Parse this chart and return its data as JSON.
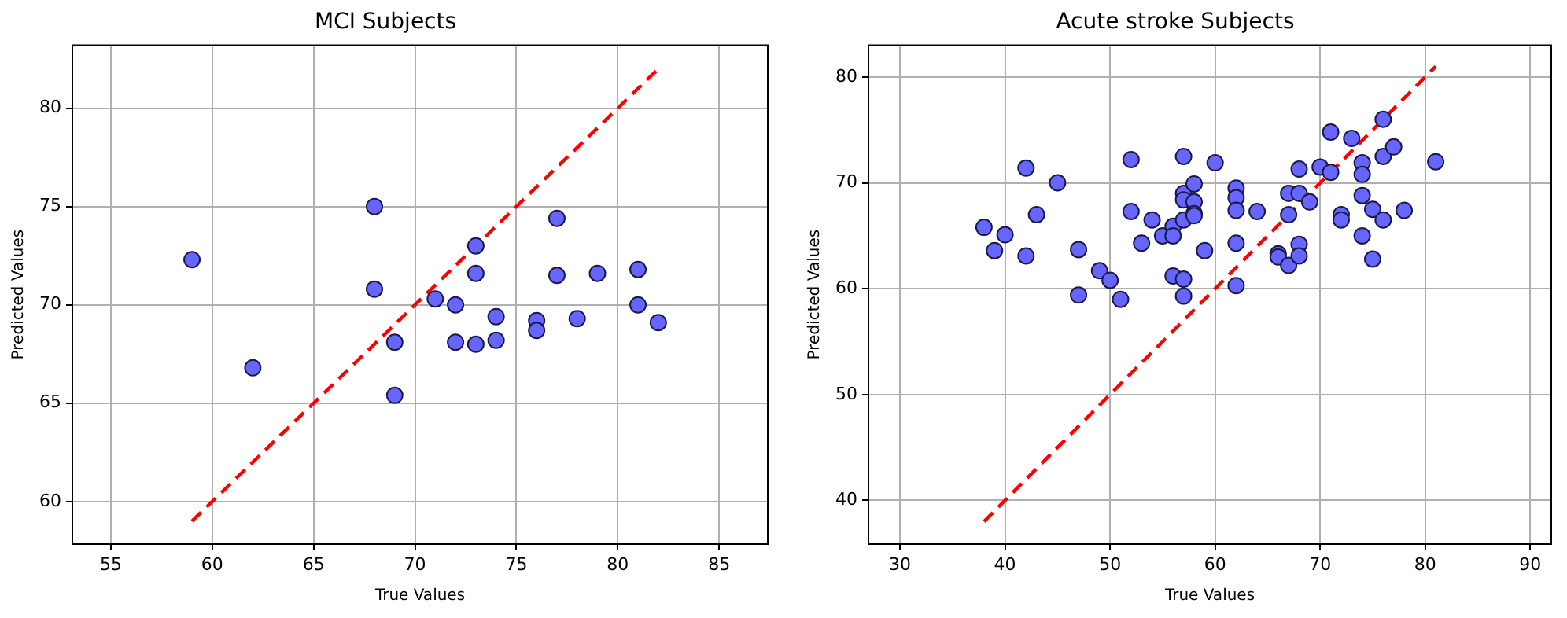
{
  "chart_data": [
    {
      "type": "scatter",
      "title": "MCI Subjects",
      "xlabel": "True Values",
      "ylabel": "Predicted Values",
      "xlim": [
        53.1,
        87.4
      ],
      "ylim": [
        57.85,
        83.2
      ],
      "xticks": [
        55,
        60,
        65,
        70,
        75,
        80,
        85
      ],
      "yticks": [
        60,
        65,
        70,
        75,
        80
      ],
      "grid": true,
      "series": [
        {
          "type": "scatter",
          "marker": "circle",
          "color": "#6666ff",
          "x": [
            59,
            68,
            62,
            68,
            73,
            73,
            71,
            72,
            69,
            69,
            72,
            73,
            74,
            74,
            76,
            76,
            77,
            77,
            78,
            79,
            81,
            81,
            82
          ],
          "values": [
            72.3,
            75.0,
            66.8,
            70.8,
            73.0,
            71.6,
            70.3,
            70.0,
            68.1,
            65.4,
            68.1,
            68.0,
            69.4,
            68.2,
            69.2,
            68.7,
            74.4,
            71.5,
            69.3,
            71.6,
            71.8,
            70.0,
            69.1
          ]
        },
        {
          "type": "line",
          "marker": "none",
          "color": "#ff0000",
          "line_style": "dashed",
          "x": [
            59,
            82
          ],
          "values": [
            59,
            82
          ]
        }
      ]
    },
    {
      "type": "scatter",
      "title": "Acute stroke Subjects",
      "xlabel": "True Values",
      "ylabel": "Predicted Values",
      "xlim": [
        27.0,
        92.0
      ],
      "ylim": [
        35.9,
        83.0
      ],
      "xticks": [
        30,
        40,
        50,
        60,
        70,
        80,
        90
      ],
      "yticks": [
        40,
        50,
        60,
        70,
        80
      ],
      "grid": true,
      "series": [
        {
          "type": "scatter",
          "marker": "circle",
          "color": "#6666ff",
          "x": [
            38,
            39,
            40,
            42,
            42,
            43,
            45,
            47,
            47,
            49,
            50,
            51,
            52,
            52,
            53,
            54,
            55,
            56,
            56,
            56,
            57,
            57,
            57,
            57,
            57,
            57,
            58,
            58,
            58,
            58,
            59,
            60,
            62,
            62,
            62,
            62,
            62,
            64,
            66,
            66,
            67,
            67,
            67,
            68,
            68,
            68,
            68,
            69,
            70,
            71,
            71,
            72,
            72,
            73,
            74,
            74,
            74,
            74,
            75,
            75,
            76,
            76,
            76,
            77,
            78,
            81
          ],
          "values": [
            65.8,
            63.6,
            65.1,
            71.4,
            63.1,
            67.0,
            70.0,
            63.7,
            59.4,
            61.7,
            60.8,
            59.0,
            72.2,
            67.3,
            64.3,
            66.5,
            65.0,
            65.9,
            65.0,
            61.2,
            72.5,
            69.0,
            68.4,
            66.5,
            60.9,
            59.3,
            69.9,
            68.2,
            67.1,
            66.9,
            63.6,
            71.9,
            69.5,
            68.6,
            67.4,
            64.3,
            60.3,
            67.3,
            63.3,
            63.0,
            69.0,
            67.0,
            62.2,
            71.3,
            69.0,
            64.2,
            63.1,
            68.2,
            71.5,
            74.8,
            71.0,
            67.0,
            66.5,
            74.2,
            71.9,
            70.8,
            68.8,
            65.0,
            67.5,
            62.8,
            76.0,
            72.5,
            66.5,
            73.4,
            67.4,
            72.0
          ]
        },
        {
          "type": "line",
          "marker": "none",
          "color": "#ff0000",
          "line_style": "dashed",
          "x": [
            38,
            81
          ],
          "values": [
            38,
            81
          ]
        }
      ]
    }
  ]
}
